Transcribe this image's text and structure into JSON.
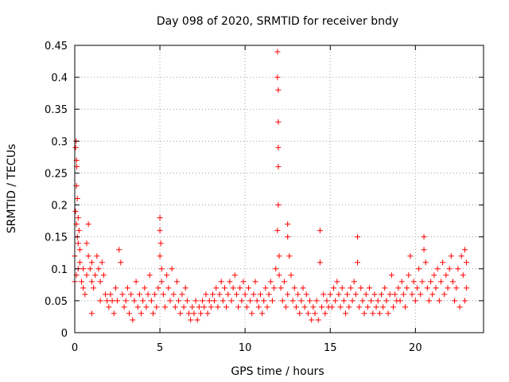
{
  "chart_data": {
    "type": "scatter",
    "title": "Day 098 of 2020, SRMTID for receiver bndy",
    "xlabel": "GPS time / hours",
    "ylabel": "SRMTID / TECUs",
    "xlim": [
      0,
      24
    ],
    "ylim": [
      0,
      0.45
    ],
    "xticks": [
      0,
      5,
      10,
      15,
      20
    ],
    "xtick_labels": [
      "0",
      "5",
      "10",
      "15",
      "20"
    ],
    "yticks": [
      0,
      0.05,
      0.1,
      0.15,
      0.2,
      0.25,
      0.3,
      0.35,
      0.4,
      0.45
    ],
    "ytick_labels": [
      "0",
      "0.05",
      "0.1",
      "0.15",
      "0.2",
      "0.25",
      "0.3",
      "0.35",
      "0.4",
      "0.45"
    ],
    "grid": true,
    "marker": "+",
    "color": "#ff0000",
    "series": [
      {
        "name": "SRMTID",
        "points": [
          [
            0.0,
            0.12
          ],
          [
            0.05,
            0.29
          ],
          [
            0.08,
            0.3
          ],
          [
            0.1,
            0.27
          ],
          [
            0.1,
            0.23
          ],
          [
            0.12,
            0.26
          ],
          [
            0.15,
            0.21
          ],
          [
            0.05,
            0.19
          ],
          [
            0.1,
            0.17
          ],
          [
            0.15,
            0.15
          ],
          [
            0.2,
            0.14
          ],
          [
            0.2,
            0.18
          ],
          [
            0.25,
            0.16
          ],
          [
            0.3,
            0.13
          ],
          [
            0.0,
            0.08
          ],
          [
            0.1,
            0.09
          ],
          [
            0.2,
            0.1
          ],
          [
            0.3,
            0.11
          ],
          [
            0.4,
            0.08
          ],
          [
            0.5,
            0.07
          ],
          [
            0.5,
            0.1
          ],
          [
            0.6,
            0.06
          ],
          [
            0.7,
            0.09
          ],
          [
            0.8,
            0.12
          ],
          [
            0.8,
            0.17
          ],
          [
            0.9,
            0.1
          ],
          [
            1.0,
            0.08
          ],
          [
            1.0,
            0.11
          ],
          [
            1.1,
            0.07
          ],
          [
            1.2,
            0.09
          ],
          [
            1.3,
            0.12
          ],
          [
            1.4,
            0.1
          ],
          [
            1.5,
            0.08
          ],
          [
            1.6,
            0.11
          ],
          [
            1.7,
            0.09
          ],
          [
            1.5,
            0.05
          ],
          [
            1.0,
            0.03
          ],
          [
            0.7,
            0.14
          ],
          [
            1.8,
            0.06
          ],
          [
            1.9,
            0.05
          ],
          [
            2.0,
            0.04
          ],
          [
            2.1,
            0.06
          ],
          [
            2.2,
            0.05
          ],
          [
            2.3,
            0.03
          ],
          [
            2.4,
            0.07
          ],
          [
            2.5,
            0.05
          ],
          [
            2.6,
            0.13
          ],
          [
            2.7,
            0.11
          ],
          [
            2.8,
            0.06
          ],
          [
            2.9,
            0.04
          ],
          [
            3.0,
            0.05
          ],
          [
            3.1,
            0.07
          ],
          [
            3.2,
            0.03
          ],
          [
            3.3,
            0.06
          ],
          [
            3.4,
            0.02
          ],
          [
            3.5,
            0.05
          ],
          [
            3.6,
            0.08
          ],
          [
            3.7,
            0.04
          ],
          [
            3.8,
            0.06
          ],
          [
            3.9,
            0.03
          ],
          [
            4.0,
            0.05
          ],
          [
            4.1,
            0.07
          ],
          [
            4.2,
            0.04
          ],
          [
            4.3,
            0.06
          ],
          [
            4.4,
            0.09
          ],
          [
            4.5,
            0.05
          ],
          [
            4.6,
            0.03
          ],
          [
            4.7,
            0.06
          ],
          [
            4.8,
            0.04
          ],
          [
            4.9,
            0.07
          ],
          [
            5.0,
            0.18
          ],
          [
            5.0,
            0.16
          ],
          [
            5.05,
            0.14
          ],
          [
            5.0,
            0.12
          ],
          [
            5.1,
            0.1
          ],
          [
            5.1,
            0.08
          ],
          [
            5.2,
            0.06
          ],
          [
            5.3,
            0.04
          ],
          [
            5.4,
            0.09
          ],
          [
            5.5,
            0.07
          ],
          [
            5.6,
            0.05
          ],
          [
            5.7,
            0.1
          ],
          [
            5.8,
            0.06
          ],
          [
            5.9,
            0.04
          ],
          [
            6.0,
            0.08
          ],
          [
            6.1,
            0.05
          ],
          [
            6.2,
            0.03
          ],
          [
            6.3,
            0.06
          ],
          [
            6.4,
            0.04
          ],
          [
            6.5,
            0.07
          ],
          [
            6.6,
            0.05
          ],
          [
            6.7,
            0.03
          ],
          [
            6.8,
            0.02
          ],
          [
            6.9,
            0.04
          ],
          [
            7.0,
            0.03
          ],
          [
            7.1,
            0.05
          ],
          [
            7.2,
            0.02
          ],
          [
            7.3,
            0.04
          ],
          [
            7.4,
            0.03
          ],
          [
            7.5,
            0.05
          ],
          [
            7.6,
            0.04
          ],
          [
            7.7,
            0.06
          ],
          [
            7.8,
            0.03
          ],
          [
            7.9,
            0.05
          ],
          [
            8.0,
            0.04
          ],
          [
            8.1,
            0.06
          ],
          [
            8.2,
            0.05
          ],
          [
            8.3,
            0.07
          ],
          [
            8.4,
            0.04
          ],
          [
            8.5,
            0.06
          ],
          [
            8.6,
            0.08
          ],
          [
            8.7,
            0.05
          ],
          [
            8.8,
            0.07
          ],
          [
            8.9,
            0.04
          ],
          [
            9.0,
            0.06
          ],
          [
            9.1,
            0.08
          ],
          [
            9.2,
            0.05
          ],
          [
            9.3,
            0.07
          ],
          [
            9.4,
            0.09
          ],
          [
            9.5,
            0.06
          ],
          [
            9.6,
            0.04
          ],
          [
            9.7,
            0.07
          ],
          [
            9.8,
            0.05
          ],
          [
            9.9,
            0.08
          ],
          [
            10.0,
            0.06
          ],
          [
            10.1,
            0.04
          ],
          [
            10.2,
            0.07
          ],
          [
            10.3,
            0.05
          ],
          [
            10.4,
            0.03
          ],
          [
            10.5,
            0.06
          ],
          [
            10.6,
            0.08
          ],
          [
            10.7,
            0.05
          ],
          [
            10.8,
            0.04
          ],
          [
            10.9,
            0.06
          ],
          [
            11.0,
            0.03
          ],
          [
            11.1,
            0.05
          ],
          [
            11.2,
            0.07
          ],
          [
            11.3,
            0.04
          ],
          [
            11.4,
            0.06
          ],
          [
            11.5,
            0.08
          ],
          [
            11.6,
            0.05
          ],
          [
            11.7,
            0.07
          ],
          [
            11.8,
            0.1
          ],
          [
            11.9,
            0.44
          ],
          [
            11.9,
            0.4
          ],
          [
            11.95,
            0.38
          ],
          [
            11.95,
            0.33
          ],
          [
            11.95,
            0.29
          ],
          [
            11.95,
            0.26
          ],
          [
            11.95,
            0.2
          ],
          [
            11.9,
            0.16
          ],
          [
            12.0,
            0.12
          ],
          [
            12.0,
            0.09
          ],
          [
            12.1,
            0.07
          ],
          [
            12.2,
            0.05
          ],
          [
            12.3,
            0.08
          ],
          [
            12.4,
            0.04
          ],
          [
            12.5,
            0.06
          ],
          [
            12.5,
            0.17
          ],
          [
            12.5,
            0.15
          ],
          [
            12.6,
            0.12
          ],
          [
            12.7,
            0.09
          ],
          [
            12.8,
            0.05
          ],
          [
            12.9,
            0.07
          ],
          [
            13.0,
            0.04
          ],
          [
            13.1,
            0.06
          ],
          [
            13.2,
            0.03
          ],
          [
            13.3,
            0.05
          ],
          [
            13.4,
            0.07
          ],
          [
            13.5,
            0.04
          ],
          [
            13.6,
            0.06
          ],
          [
            13.7,
            0.03
          ],
          [
            13.8,
            0.05
          ],
          [
            13.9,
            0.02
          ],
          [
            14.0,
            0.04
          ],
          [
            14.1,
            0.03
          ],
          [
            14.2,
            0.05
          ],
          [
            14.3,
            0.02
          ],
          [
            14.4,
            0.16
          ],
          [
            14.4,
            0.11
          ],
          [
            14.5,
            0.04
          ],
          [
            14.6,
            0.06
          ],
          [
            14.7,
            0.03
          ],
          [
            14.8,
            0.05
          ],
          [
            14.9,
            0.04
          ],
          [
            15.0,
            0.06
          ],
          [
            15.1,
            0.04
          ],
          [
            15.2,
            0.07
          ],
          [
            15.3,
            0.05
          ],
          [
            15.4,
            0.08
          ],
          [
            15.5,
            0.06
          ],
          [
            15.6,
            0.04
          ],
          [
            15.7,
            0.07
          ],
          [
            15.8,
            0.05
          ],
          [
            15.9,
            0.03
          ],
          [
            16.0,
            0.06
          ],
          [
            16.1,
            0.04
          ],
          [
            16.2,
            0.07
          ],
          [
            16.3,
            0.05
          ],
          [
            16.4,
            0.08
          ],
          [
            16.5,
            0.06
          ],
          [
            16.6,
            0.15
          ],
          [
            16.6,
            0.11
          ],
          [
            16.7,
            0.04
          ],
          [
            16.8,
            0.07
          ],
          [
            16.9,
            0.05
          ],
          [
            17.0,
            0.03
          ],
          [
            17.1,
            0.06
          ],
          [
            17.2,
            0.04
          ],
          [
            17.3,
            0.07
          ],
          [
            17.4,
            0.05
          ],
          [
            17.5,
            0.03
          ],
          [
            17.6,
            0.06
          ],
          [
            17.7,
            0.04
          ],
          [
            17.8,
            0.05
          ],
          [
            17.9,
            0.03
          ],
          [
            18.0,
            0.06
          ],
          [
            18.1,
            0.04
          ],
          [
            18.2,
            0.07
          ],
          [
            18.3,
            0.05
          ],
          [
            18.4,
            0.03
          ],
          [
            18.5,
            0.06
          ],
          [
            18.6,
            0.09
          ],
          [
            18.7,
            0.04
          ],
          [
            18.8,
            0.06
          ],
          [
            18.9,
            0.05
          ],
          [
            19.0,
            0.07
          ],
          [
            19.1,
            0.05
          ],
          [
            19.2,
            0.08
          ],
          [
            19.3,
            0.06
          ],
          [
            19.4,
            0.04
          ],
          [
            19.5,
            0.07
          ],
          [
            19.6,
            0.09
          ],
          [
            19.7,
            0.12
          ],
          [
            19.8,
            0.06
          ],
          [
            19.9,
            0.08
          ],
          [
            20.0,
            0.05
          ],
          [
            20.1,
            0.07
          ],
          [
            20.2,
            0.1
          ],
          [
            20.3,
            0.06
          ],
          [
            20.4,
            0.08
          ],
          [
            20.5,
            0.15
          ],
          [
            20.5,
            0.13
          ],
          [
            20.6,
            0.11
          ],
          [
            20.7,
            0.07
          ],
          [
            20.8,
            0.05
          ],
          [
            20.9,
            0.08
          ],
          [
            21.0,
            0.06
          ],
          [
            21.1,
            0.09
          ],
          [
            21.2,
            0.07
          ],
          [
            21.3,
            0.1
          ],
          [
            21.4,
            0.05
          ],
          [
            21.5,
            0.08
          ],
          [
            21.6,
            0.11
          ],
          [
            21.7,
            0.06
          ],
          [
            21.8,
            0.09
          ],
          [
            21.9,
            0.07
          ],
          [
            22.0,
            0.1
          ],
          [
            22.1,
            0.12
          ],
          [
            22.2,
            0.08
          ],
          [
            22.3,
            0.05
          ],
          [
            22.4,
            0.07
          ],
          [
            22.5,
            0.1
          ],
          [
            22.6,
            0.04
          ],
          [
            22.7,
            0.12
          ],
          [
            22.8,
            0.09
          ],
          [
            22.9,
            0.13
          ],
          [
            23.0,
            0.11
          ],
          [
            23.0,
            0.07
          ],
          [
            22.9,
            0.05
          ]
        ]
      }
    ]
  }
}
